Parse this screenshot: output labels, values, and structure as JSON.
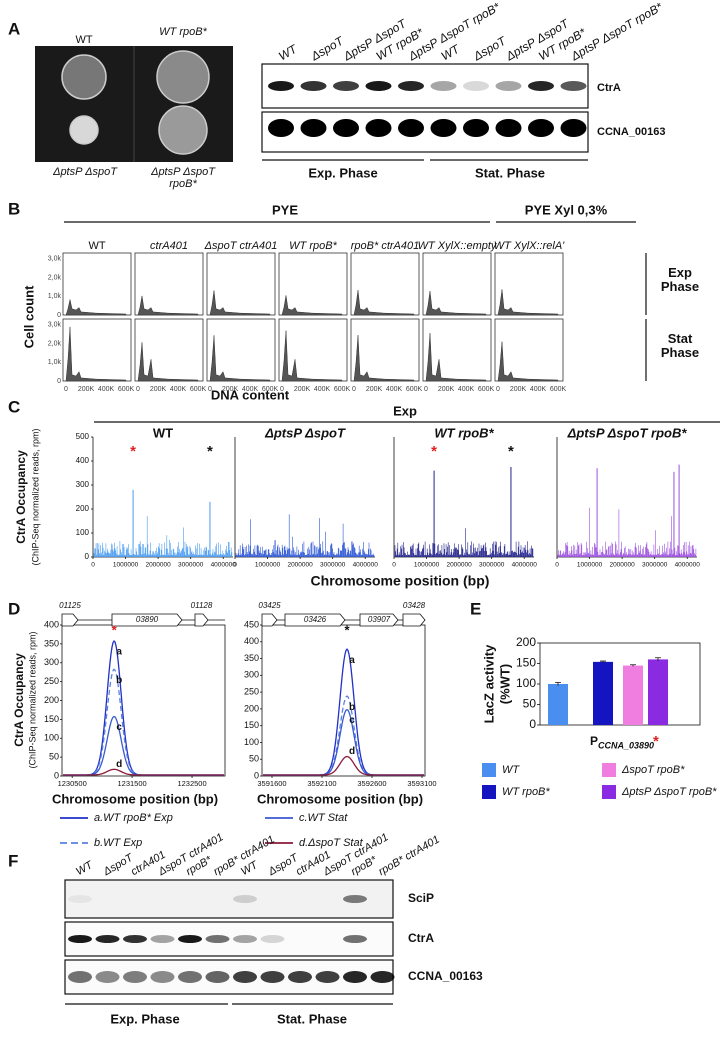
{
  "A": {
    "letter": "A",
    "plate_labels": [
      "WT",
      "WT rpoB*",
      "ΔptsP ΔspoT",
      "ΔptsP ΔspoT rpoB*"
    ],
    "lanes": [
      "WT",
      "ΔspoT",
      "ΔptsP ΔspoT",
      "WT rpoB*",
      "ΔptsP ΔspoT rpoB*",
      "WT",
      "ΔspoT",
      "ΔptsP ΔspoT",
      "WT rpoB*",
      "ΔptsP ΔspoT rpoB*"
    ],
    "blots": [
      "CtrA",
      "CCNA_00163"
    ],
    "phases": [
      "Exp. Phase",
      "Stat. Phase"
    ]
  },
  "B": {
    "letter": "B",
    "groups": [
      "PYE",
      "PYE Xyl 0,3%"
    ],
    "columns": [
      "WT",
      "ctrA401",
      "ΔspoT ctrA401",
      "WT rpoB*",
      "rpoB* ctrA401",
      "WT XylX::empty",
      "WT XylX::relA'"
    ],
    "rows": [
      "Exp Phase",
      "Stat Phase"
    ],
    "yticks": [
      "0",
      "1,0k",
      "2,0k",
      "3,0k"
    ],
    "xticks": [
      "0",
      "200K",
      "400K",
      "600K"
    ],
    "ylabel": "Cell count",
    "xlabel": "DNA content"
  },
  "C": {
    "letter": "C",
    "header": "Exp",
    "ylabel": "CtrA Occupancy",
    "ylabel2": "(ChIP-Seq normalized reads, rpm)",
    "xlabel": "Chromosome position (bp)",
    "marker": "*",
    "ylim": [
      0,
      500
    ],
    "yticks": [
      0,
      100,
      200,
      300,
      400,
      500
    ],
    "xlim": [
      0,
      4300000
    ],
    "xticks": [
      0,
      1000000,
      2000000,
      3000000,
      4000000
    ],
    "plots": [
      {
        "title": "WT",
        "color": "#4a9cf0",
        "x": [
          1231000,
          3592000
        ],
        "values": [
          280,
          230
        ],
        "stars": [
          {
            "x": 1231000,
            "color": "#e02020"
          },
          {
            "x": 3592000,
            "color": "#111111"
          }
        ]
      },
      {
        "title": "ΔptsP ΔspoT",
        "color": "#2b55d6",
        "x": [
          1231000,
          3592000
        ],
        "values": [
          70,
          65
        ],
        "stars": []
      },
      {
        "title": "WT rpoB*",
        "color": "#22228c",
        "x": [
          1231000,
          3592000
        ],
        "values": [
          360,
          375
        ],
        "stars": [
          {
            "x": 1231000,
            "color": "#e02020"
          },
          {
            "x": 3592000,
            "color": "#111111"
          }
        ]
      },
      {
        "title": "ΔptsP ΔspoT rpoB*",
        "color": "#9b4fe0",
        "x": [
          1231000,
          3592000,
          3750000
        ],
        "values": [
          370,
          355,
          385
        ],
        "stars": []
      }
    ]
  },
  "D": {
    "letter": "D",
    "ylabel": "CtrA Occupancy",
    "ylabel2": "(ChIP-Seq normalized reads, rpm)",
    "xlabel": "Chromosome position (bp)",
    "marker": "*",
    "curve_labels": [
      "a",
      "b",
      "c",
      "d"
    ],
    "colors": [
      "#2030c8",
      "#5a80e0",
      "#3a5ad0",
      "#8a1a3a"
    ],
    "legend": [
      "a.WT rpoB* Exp",
      "b.WT Exp",
      "c.WT Stat",
      "d.ΔspoT Stat"
    ],
    "plots": [
      {
        "genes": [
          "01125",
          "03890",
          "01128"
        ],
        "ylim": [
          0,
          400
        ],
        "yticks": [
          0,
          50,
          100,
          150,
          200,
          250,
          300,
          350,
          400
        ],
        "xlim": [
          1230330,
          1233050
        ],
        "xticks": [
          1230500,
          1231500,
          1232500
        ],
        "peak_x": 1231200,
        "values": [
          355,
          280,
          155,
          15
        ],
        "star_color": "#e02020"
      },
      {
        "genes": [
          "03425",
          "03426",
          "03907",
          "03428"
        ],
        "ylim": [
          0,
          450
        ],
        "yticks": [
          0,
          50,
          100,
          150,
          200,
          250,
          300,
          350,
          400,
          450
        ],
        "xlim": [
          3591500,
          3593130
        ],
        "xticks": [
          3591600,
          3592100,
          3592600,
          3593100
        ],
        "peak_x": 3592350,
        "values": [
          375,
          235,
          195,
          55
        ],
        "star_color": "#111111"
      }
    ]
  },
  "E": {
    "letter": "E",
    "type": "bar",
    "ylabel": "LacZ activity",
    "ylabel2": "(%WT)",
    "promoter": "P",
    "gene": "CCNA_03890",
    "marker": "*",
    "ylim": [
      0,
      200
    ],
    "yticks": [
      0,
      50,
      100,
      150,
      200
    ],
    "series": [
      {
        "name": "WT",
        "color": "#4a8ff0",
        "value": 100,
        "error": 4
      },
      {
        "name": "WT rpoB*",
        "color": "#1414c0",
        "value": 154,
        "error": 2
      },
      {
        "name": "ΔspoT rpoB*",
        "color": "#f07ee0",
        "value": 145,
        "error": 2
      },
      {
        "name": "ΔptsP ΔspoT rpoB*",
        "color": "#8a2be2",
        "value": 160,
        "error": 4
      }
    ]
  },
  "F": {
    "letter": "F",
    "lanes": [
      "WT",
      "ΔspoT",
      "ctrA401",
      "ΔspoT ctrA401",
      "rpoB*",
      "rpoB* ctrA401",
      "WT",
      "ΔspoT",
      "ctrA401",
      "ΔspoT ctrA401",
      "rpoB*",
      "rpoB* ctrA401"
    ],
    "blots": [
      "SciP",
      "CtrA",
      "CCNA_00163"
    ],
    "phases": [
      "Exp. Phase",
      "Stat. Phase"
    ]
  }
}
